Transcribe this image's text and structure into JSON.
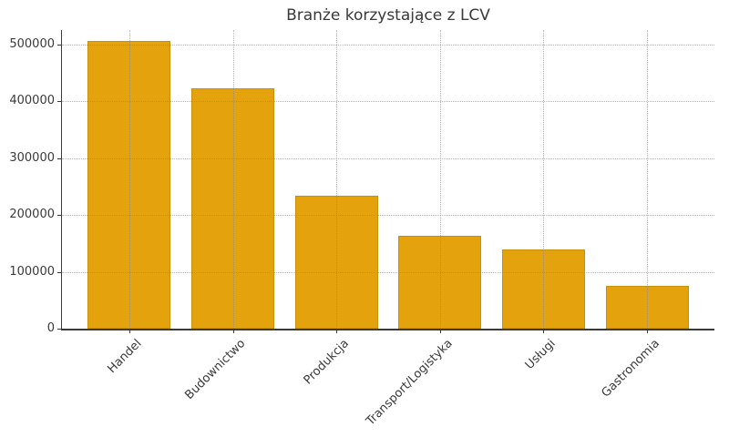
{
  "figure": {
    "kind": "matplotlib-bar-chart"
  },
  "chart_data": {
    "type": "bar",
    "title": "Branże korzystające z LCV",
    "xlabel": "",
    "ylabel": "",
    "categories": [
      "Handel",
      "Budownictwo",
      "Produkcja",
      "Transport/Logistyka",
      "Usługi",
      "Gastronomia"
    ],
    "values": [
      505000,
      422000,
      234000,
      163000,
      140000,
      75000
    ],
    "ylim": [
      0,
      525000
    ],
    "yticks": [
      0,
      100000,
      200000,
      300000,
      400000,
      500000
    ],
    "ytick_labels": [
      "0",
      "100000",
      "200000",
      "300000",
      "400000",
      "500000"
    ],
    "grid": true,
    "grid_style": "dotted",
    "legend": false,
    "bar_color": "#e4a30c",
    "bar_edge_color": "#c9900a",
    "axis_color": "#3a3a3a",
    "text_color": "#3a3a3a",
    "grid_color": "#828282",
    "background_color": "#ffffff"
  }
}
